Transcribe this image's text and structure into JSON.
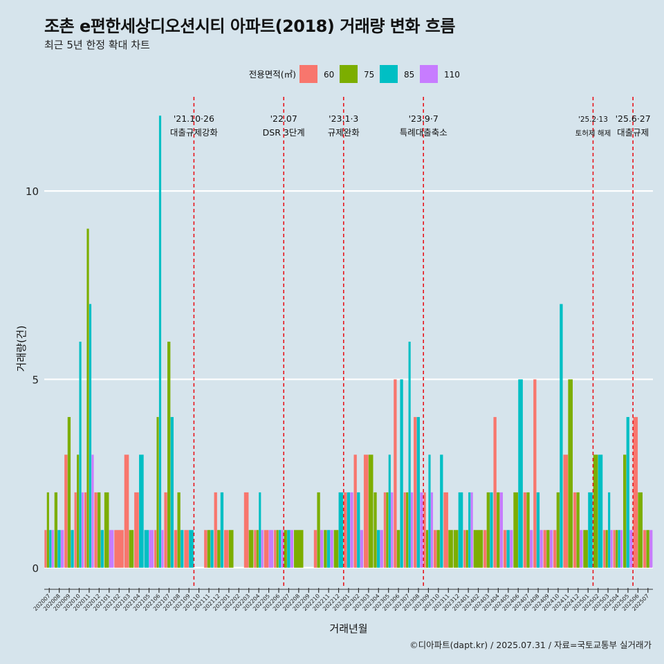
{
  "title": "조촌 e편한세상디오션시티 아파트(2018) 거래량 변화 흐름",
  "subtitle": "최근 5년 한정 확대 차트",
  "caption": "©디아파트(dapt.kr) / 2025.07.31 / 자료=국토교통부 실거래가",
  "chart_data": {
    "type": "bar",
    "xlabel": "거래년월",
    "ylabel": "거래량(건)",
    "ylim": [
      -0.5,
      12.5
    ],
    "yticks": [
      0,
      5,
      10
    ],
    "legend": {
      "title": "전용면적(㎡)",
      "position": "top"
    },
    "categories": [
      "202007",
      "202008",
      "202009",
      "202010",
      "202011",
      "202012",
      "202101",
      "202102",
      "202103",
      "202104",
      "202105",
      "202106",
      "202107",
      "202108",
      "202109",
      "202110",
      "202111",
      "202112",
      "202201",
      "202202",
      "202203",
      "202204",
      "202205",
      "202206",
      "202207",
      "202208",
      "202209",
      "202210",
      "202211",
      "202212",
      "202301",
      "202302",
      "202303",
      "202304",
      "202305",
      "202306",
      "202307",
      "202308",
      "202309",
      "202310",
      "202311",
      "202312",
      "202401",
      "202402",
      "202403",
      "202404",
      "202405",
      "202406",
      "202407",
      "202408",
      "202409",
      "202410",
      "202411",
      "202412",
      "202501",
      "202502",
      "202503",
      "202504",
      "202505",
      "202506",
      "202507"
    ],
    "tick_labels": [
      "202007",
      "202008",
      "202009",
      "202010",
      "202011",
      "202012",
      "202101",
      "202102",
      "202103",
      "202104",
      "202105",
      "202106",
      "202107",
      "202108",
      "202109",
      "202110",
      "202111",
      "202112",
      "202201",
      "202202",
      "202203",
      "202204",
      "202205",
      "202206",
      "202207",
      "202208",
      "202209",
      "202210",
      "202211",
      "202212",
      "202301",
      "202302",
      "202303",
      "202304",
      "202305",
      "202306",
      "202307",
      "202308",
      "202309",
      "202310",
      "202311",
      "202312",
      "202401",
      "202402",
      "202403",
      "202404",
      "202405",
      "202406",
      "202407",
      "202408",
      "202409",
      "202410",
      "202411",
      "202412",
      "202501",
      "202502",
      "202503",
      "202504",
      "202505",
      "202506",
      "202507"
    ],
    "series": [
      {
        "name": "60",
        "color": "#f8766d",
        "values": [
          1,
          0,
          3,
          2,
          2,
          2,
          0,
          1,
          3,
          2,
          0,
          1,
          2,
          1,
          1,
          0,
          1,
          2,
          1,
          0,
          2,
          1,
          1,
          1,
          0,
          0,
          0,
          1,
          0,
          0,
          2,
          3,
          3,
          0,
          2,
          5,
          2,
          4,
          2,
          1,
          2,
          0,
          1,
          0,
          1,
          4,
          1,
          0,
          2,
          5,
          1,
          1,
          3,
          2,
          0,
          0,
          1,
          1,
          0,
          4,
          1
        ]
      },
      {
        "name": "75",
        "color": "#7cae00",
        "values": [
          2,
          2,
          4,
          3,
          9,
          2,
          2,
          0,
          1,
          0,
          0,
          4,
          6,
          2,
          0,
          0,
          1,
          1,
          1,
          0,
          1,
          1,
          0,
          1,
          1,
          1,
          0,
          2,
          1,
          1,
          0,
          0,
          3,
          2,
          2,
          1,
          2,
          0,
          1,
          1,
          1,
          1,
          1,
          1,
          2,
          2,
          0,
          2,
          2,
          0,
          1,
          2,
          5,
          2,
          1,
          3,
          1,
          1,
          3,
          2,
          1
        ]
      },
      {
        "name": "85",
        "color": "#00bfc4",
        "values": [
          1,
          1,
          1,
          6,
          7,
          1,
          0,
          0,
          0,
          3,
          1,
          12,
          4,
          1,
          1,
          0,
          1,
          2,
          0,
          0,
          0,
          2,
          0,
          1,
          1,
          0,
          0,
          0,
          1,
          2,
          2,
          2,
          0,
          1,
          3,
          5,
          6,
          4,
          3,
          3,
          0,
          2,
          2,
          0,
          2,
          0,
          1,
          5,
          0,
          2,
          0,
          7,
          0,
          0,
          2,
          3,
          2,
          1,
          4,
          0,
          0
        ]
      },
      {
        "name": "110",
        "color": "#c77cff",
        "values": [
          1,
          1,
          0,
          2,
          3,
          0,
          1,
          0,
          0,
          0,
          1,
          1,
          0,
          0,
          0,
          0,
          0,
          0,
          0,
          0,
          0,
          1,
          1,
          1,
          1,
          0,
          0,
          1,
          1,
          0,
          2,
          1,
          0,
          1,
          2,
          0,
          2,
          2,
          2,
          0,
          0,
          0,
          2,
          0,
          0,
          2,
          1,
          0,
          1,
          1,
          1,
          0,
          0,
          1,
          0,
          0,
          1,
          1,
          1,
          0,
          1
        ]
      }
    ],
    "events": [
      {
        "date": "'21.10·26",
        "label": "대출규제강화",
        "x_index": 15
      },
      {
        "date": "'22.07",
        "label": "DSR 3단계",
        "x_index": 24
      },
      {
        "date": "'23.1·3",
        "label": "규제완화",
        "x_index": 30
      },
      {
        "date": "'23.9·7",
        "label": "특례대출축소",
        "x_index": 38
      },
      {
        "date": "'25.2·13",
        "label": "토허제 해제",
        "x_index": 55
      },
      {
        "date": "'25.6·27",
        "label": "대출규제",
        "x_index": 59
      }
    ]
  }
}
